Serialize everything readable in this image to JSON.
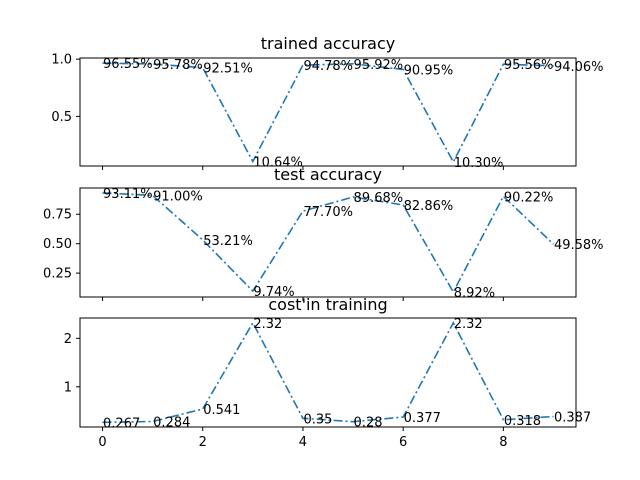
{
  "colors": {
    "series": "#1f77b4"
  },
  "chart_data": [
    {
      "type": "line",
      "title": "trained accuracy",
      "x": [
        0,
        1,
        2,
        3,
        4,
        5,
        6,
        7,
        8,
        9
      ],
      "values": [
        0.9655,
        0.9578,
        0.9251,
        0.1064,
        0.9478,
        0.9592,
        0.9095,
        0.103,
        0.9556,
        0.9406
      ],
      "labels": [
        "96.55%",
        "95.78%",
        "92.51%",
        "10.64%",
        "94.78%",
        "95.92%",
        "90.95%",
        "10.30%",
        "95.56%",
        "94.06%"
      ],
      "ylim": [
        0.067,
        1.01
      ],
      "yticks": [
        0.5,
        1.0
      ],
      "ytick_labels": [
        "0.5",
        "1.0"
      ],
      "xticks": [
        0,
        2,
        4,
        6,
        8
      ],
      "xtick_labels_visible": false
    },
    {
      "type": "line",
      "title": "test accuracy",
      "x": [
        0,
        1,
        2,
        3,
        4,
        5,
        6,
        7,
        8,
        9
      ],
      "values": [
        0.9311,
        0.91,
        0.5321,
        0.0974,
        0.777,
        0.8968,
        0.8286,
        0.0892,
        0.9022,
        0.4958
      ],
      "labels": [
        "93.11%",
        "91.00%",
        "53.21%",
        "9.74%",
        "77.70%",
        "89.68%",
        "82.86%",
        "8.92%",
        "90.22%",
        "49.58%"
      ],
      "ylim": [
        0.047,
        0.973
      ],
      "yticks": [
        0.25,
        0.5,
        0.75
      ],
      "ytick_labels": [
        "0.25",
        "0.50",
        "0.75"
      ],
      "xticks": [
        0,
        2,
        4,
        6,
        8
      ],
      "xtick_labels_visible": false
    },
    {
      "type": "line",
      "title": "cost'in training",
      "x": [
        0,
        1,
        2,
        3,
        4,
        5,
        6,
        7,
        8,
        9
      ],
      "values": [
        0.267,
        0.284,
        0.541,
        2.32,
        0.35,
        0.28,
        0.377,
        2.32,
        0.318,
        0.387
      ],
      "labels": [
        "0.267",
        "0.284",
        "0.541",
        "2.32",
        "0.35",
        "0.28",
        "0.377",
        "2.32",
        "0.318",
        "0.387"
      ],
      "ylim": [
        0.17,
        2.42
      ],
      "yticks": [
        1,
        2
      ],
      "ytick_labels": [
        "1",
        "2"
      ],
      "xticks": [
        0,
        2,
        4,
        6,
        8
      ],
      "xtick_labels": [
        "0",
        "2",
        "4",
        "6",
        "8"
      ],
      "xtick_labels_visible": true
    }
  ],
  "xlim": [
    -0.45,
    9.45
  ]
}
